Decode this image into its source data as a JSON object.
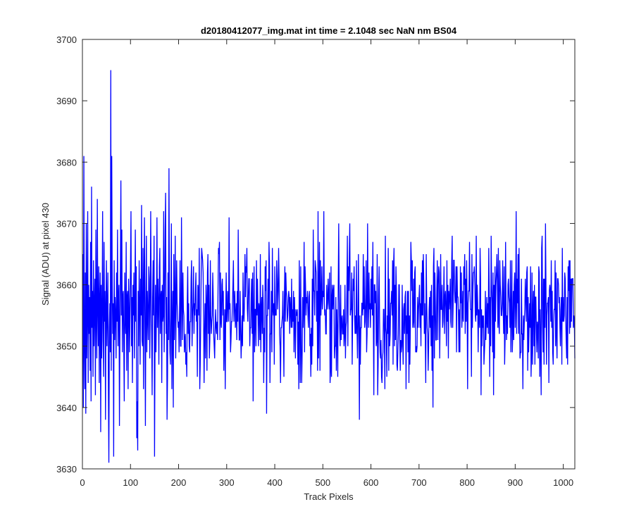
{
  "chart_data": {
    "type": "line",
    "title": "d20180412077_img.mat int time = 2.1048 sec  NaN nm BS04",
    "xlabel": "Track Pixels",
    "ylabel": "Signal (ADU) at pixel 430",
    "xlim": [
      0,
      1024
    ],
    "ylim": [
      3630,
      3700
    ],
    "xticks": [
      0,
      100,
      200,
      300,
      400,
      500,
      600,
      700,
      800,
      900,
      1000
    ],
    "yticks": [
      3630,
      3640,
      3650,
      3660,
      3670,
      3680,
      3690,
      3700
    ],
    "grid": false,
    "series": [
      {
        "color": "#0000ff",
        "x_start": 1,
        "x_step": 1,
        "count": 1024,
        "mean": 3656,
        "std": 6,
        "values": [
          3665,
          3640,
          3681,
          3650,
          3643,
          3662,
          3639,
          3670,
          3648,
          3655,
          3672,
          3644,
          3660,
          3652,
          3658,
          3646,
          3667,
          3641,
          3676,
          3653,
          3659,
          3645,
          3664,
          3650,
          3657,
          3661,
          3642,
          3669,
          3655,
          3648,
          3674,
          3656,
          3650,
          3663,
          3644,
          3658,
          3662,
          3636,
          3660,
          3648,
          3656,
          3672,
          3651,
          3645,
          3667,
          3654,
          3659,
          3638,
          3657,
          3664,
          3650,
          3656,
          3662,
          3643,
          3631,
          3653,
          3657,
          3649,
          3695,
          3646,
          3681,
          3660,
          3652,
          3657,
          3632,
          3664,
          3651,
          3658,
          3655,
          3648,
          3662,
          3654,
          3669,
          3650,
          3658,
          3660,
          3637,
          3652,
          3663,
          3677,
          3655,
          3669,
          3649,
          3658,
          3659,
          3650,
          3641,
          3662,
          3655,
          3652,
          3667,
          3646,
          3658,
          3659,
          3643,
          3661,
          3657,
          3649,
          3656,
          3663,
          3672,
          3650,
          3658,
          3644,
          3660,
          3655,
          3662,
          3648,
          3656,
          3669,
          3654,
          3663,
          3635,
          3641,
          3633,
          3659,
          3650,
          3664,
          3657,
          3647,
          3661,
          3655,
          3673,
          3651,
          3650,
          3666,
          3643,
          3660,
          3671,
          3654,
          3637,
          3657,
          3668,
          3649,
          3659,
          3655,
          3651,
          3663,
          3661,
          3648,
          3656,
          3672,
          3659,
          3652,
          3642,
          3658,
          3664,
          3655,
          3668,
          3632,
          3650,
          3660,
          3649,
          3656,
          3671,
          3653,
          3661,
          3657,
          3647,
          3663,
          3666,
          3652,
          3658,
          3659,
          3644,
          3660,
          3654,
          3655,
          3672,
          3649,
          3657,
          3669,
          3675,
          3652,
          3658,
          3638,
          3645,
          3662,
          3651,
          3679,
          3655,
          3649,
          3647,
          3657,
          3670,
          3643,
          3653,
          3659,
          3640,
          3665,
          3651,
          3656
        ]
      }
    ]
  }
}
